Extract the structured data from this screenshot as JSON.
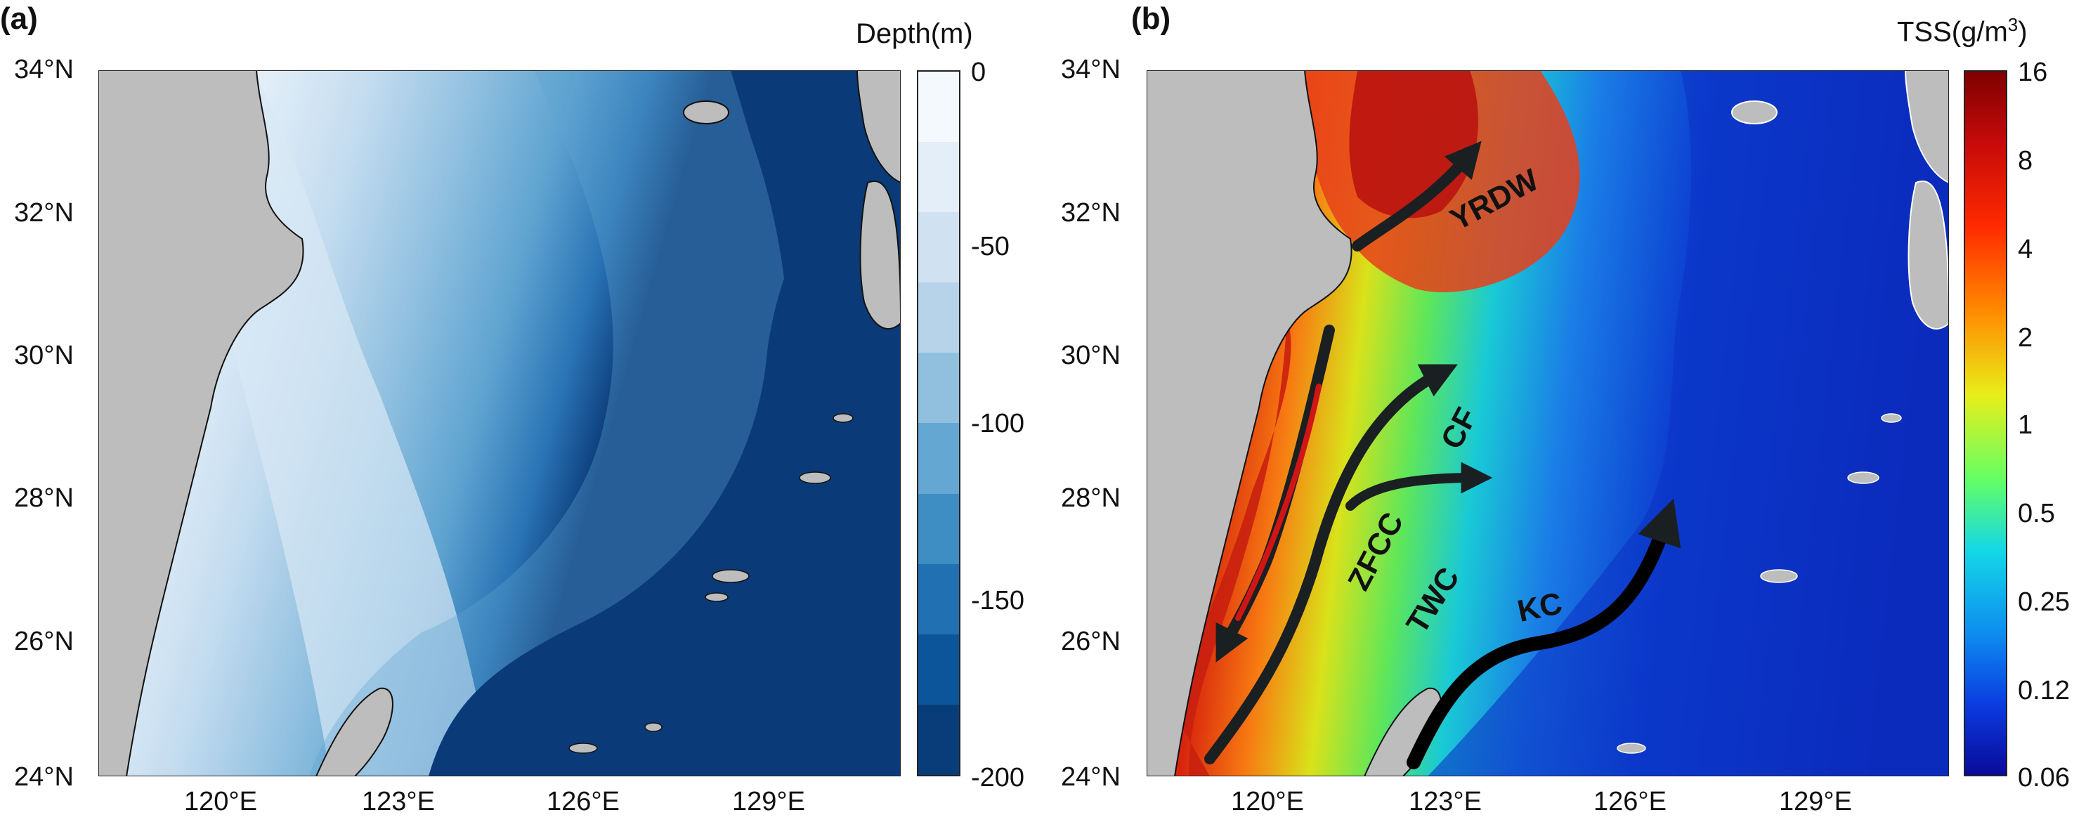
{
  "panels": [
    {
      "letter": "(a)",
      "colorbar": {
        "title": "Depth(m)",
        "ticks": [
          "0",
          "-50",
          "-100",
          "-150",
          "-200"
        ],
        "levels": [
          "#f4f9fe",
          "#e3eef8",
          "#d0e2f2",
          "#b6d3ea",
          "#91c0df",
          "#64a7d2",
          "#3f8ec3",
          "#2170b1",
          "#0d559a",
          "#083d7a"
        ]
      }
    },
    {
      "letter": "(b)",
      "colorbar": {
        "title_main": "TSS(g/m",
        "title_sup": "3",
        "title_end": ")",
        "ticks": [
          "16",
          "8",
          "4",
          "2",
          "1",
          "0.5",
          "0.25",
          "0.12",
          "0.06"
        ]
      },
      "currents": [
        "YRDW",
        "CF",
        "ZFCC",
        "TWC",
        "KC"
      ]
    }
  ],
  "axes": {
    "lat_labels": [
      "34°N",
      "32°N",
      "30°N",
      "28°N",
      "26°N",
      "24°N"
    ],
    "lon_labels": [
      "120°E",
      "123°E",
      "126°E",
      "129°E"
    ]
  },
  "colors": {
    "land": "#bdbdbd",
    "deep_water": "#0b3a78",
    "high_tss": "#9e0a0a",
    "low_tss": "#0a1fb0"
  }
}
